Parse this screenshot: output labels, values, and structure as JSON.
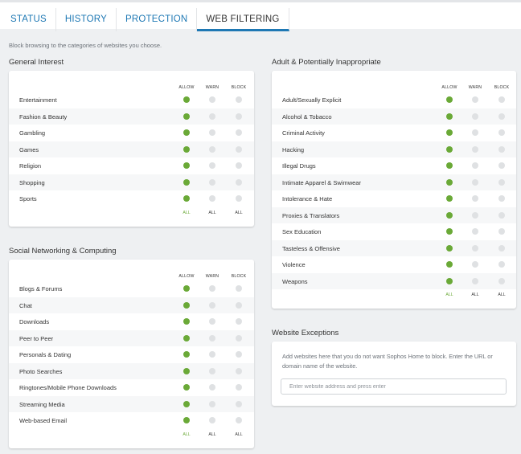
{
  "tabs": [
    {
      "label": "STATUS",
      "active": false
    },
    {
      "label": "HISTORY",
      "active": false
    },
    {
      "label": "PROTECTION",
      "active": false
    },
    {
      "label": "WEB FILTERING",
      "active": true
    }
  ],
  "intro": "Block browsing to the categories of websites you choose.",
  "column_headers": {
    "allow": "ALLOW",
    "warn": "WARN",
    "block": "BLOCK"
  },
  "all_label": "ALL",
  "colors": {
    "allow": "#6aa937",
    "inactive": "#dfe1e3",
    "accent": "#1e78b4"
  },
  "general": {
    "title": "General Interest",
    "rows": [
      "Entertainment",
      "Fashion & Beauty",
      "Gambling",
      "Games",
      "Religion",
      "Shopping",
      "Sports"
    ]
  },
  "adult": {
    "title": "Adult & Potentially Inappropriate",
    "rows": [
      "Adult/Sexually Explicit",
      "Alcohol & Tobacco",
      "Criminal Activity",
      "Hacking",
      "Illegal Drugs",
      "Intimate Apparel & Swimwear",
      "Intolerance & Hate",
      "Proxies & Translators",
      "Sex Education",
      "Tasteless & Offensive",
      "Violence",
      "Weapons"
    ]
  },
  "social": {
    "title": "Social Networking & Computing",
    "rows": [
      "Blogs & Forums",
      "Chat",
      "Downloads",
      "Peer to Peer",
      "Personals & Dating",
      "Photo Searches",
      "Ringtones/Mobile Phone Downloads",
      "Streaming Media",
      "Web-based Email"
    ]
  },
  "exceptions": {
    "title": "Website Exceptions",
    "description": "Add websites here that you do not want Sophos Home to block. Enter the URL or domain name of the website.",
    "placeholder": "Enter website address and press enter",
    "value": ""
  }
}
